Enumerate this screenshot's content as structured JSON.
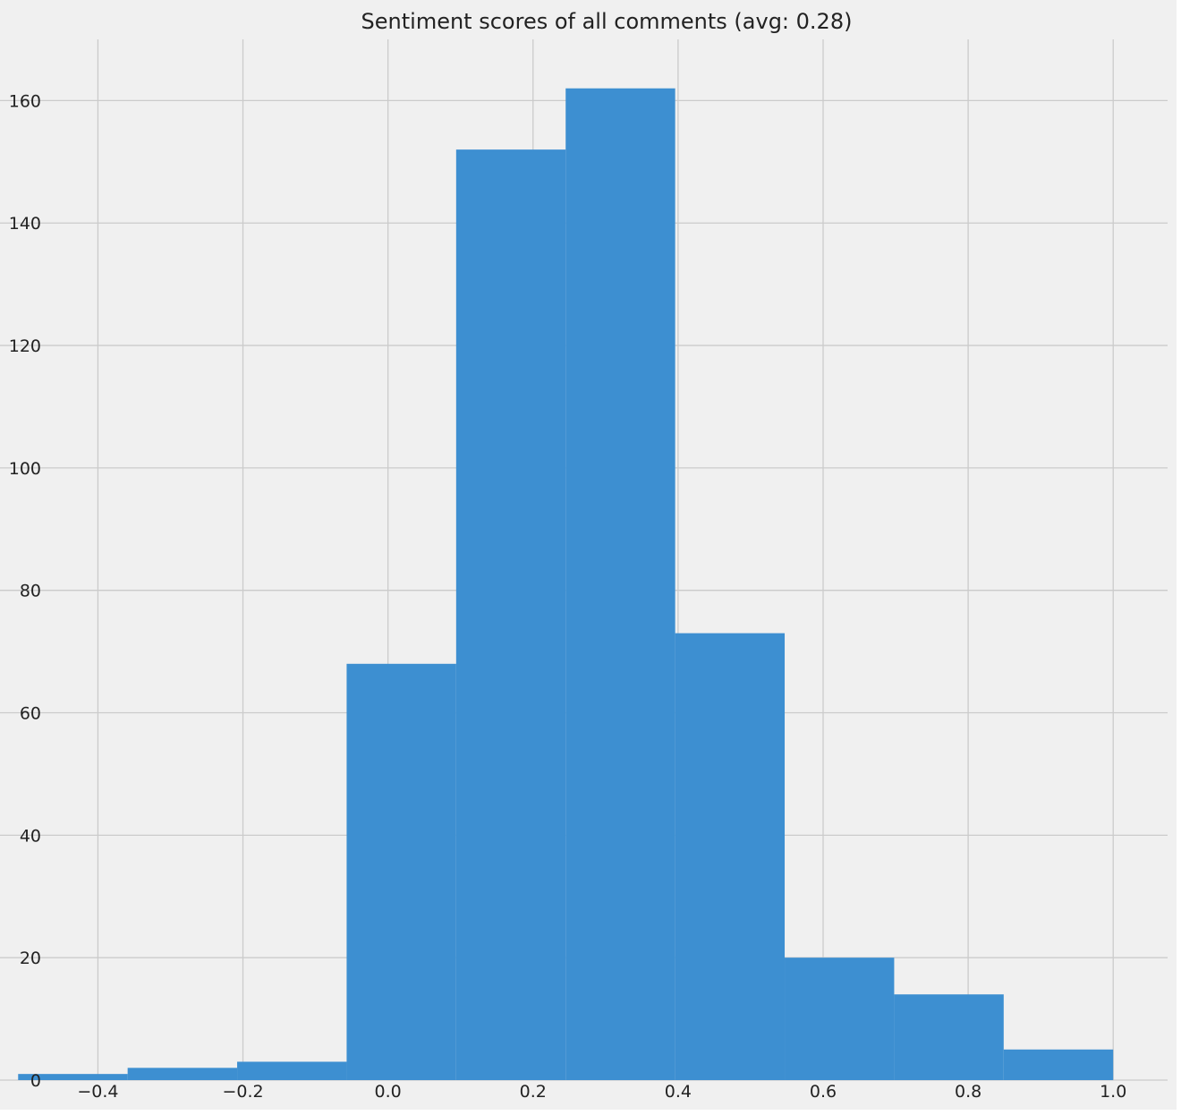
{
  "chart_data": {
    "type": "bar",
    "title": "Sentiment scores of all comments (avg: 0.28)",
    "xlabel": "",
    "ylabel": "",
    "xlim": [
      -0.535,
      1.075
    ],
    "ylim": [
      0,
      170
    ],
    "x_ticks": [
      -0.4,
      -0.2,
      0.0,
      0.2,
      0.4,
      0.6,
      0.8,
      1.0
    ],
    "x_tick_labels": [
      "−0.4",
      "−0.2",
      "0.0",
      "0.2",
      "0.4",
      "0.6",
      "0.8",
      "1.0"
    ],
    "y_ticks": [
      0,
      20,
      40,
      60,
      80,
      100,
      120,
      140,
      160
    ],
    "y_tick_labels": [
      "0",
      "20",
      "40",
      "60",
      "80",
      "100",
      "120",
      "140",
      "160"
    ],
    "bins": [
      {
        "start": -0.51,
        "end": -0.359,
        "count": 1
      },
      {
        "start": -0.359,
        "end": -0.208,
        "count": 2
      },
      {
        "start": -0.208,
        "end": -0.057,
        "count": 3
      },
      {
        "start": -0.057,
        "end": 0.094,
        "count": 68
      },
      {
        "start": 0.094,
        "end": 0.245,
        "count": 152
      },
      {
        "start": 0.245,
        "end": 0.396,
        "count": 162
      },
      {
        "start": 0.396,
        "end": 0.547,
        "count": 73
      },
      {
        "start": 0.547,
        "end": 0.698,
        "count": 20
      },
      {
        "start": 0.698,
        "end": 0.849,
        "count": 14
      },
      {
        "start": 0.849,
        "end": 1.0,
        "count": 5
      }
    ],
    "grid": true,
    "legend": "none",
    "colors": {
      "bar": "#3d8fd1",
      "background": "#f0f0f0",
      "grid": "#cbcbcb",
      "text": "#222222"
    }
  }
}
